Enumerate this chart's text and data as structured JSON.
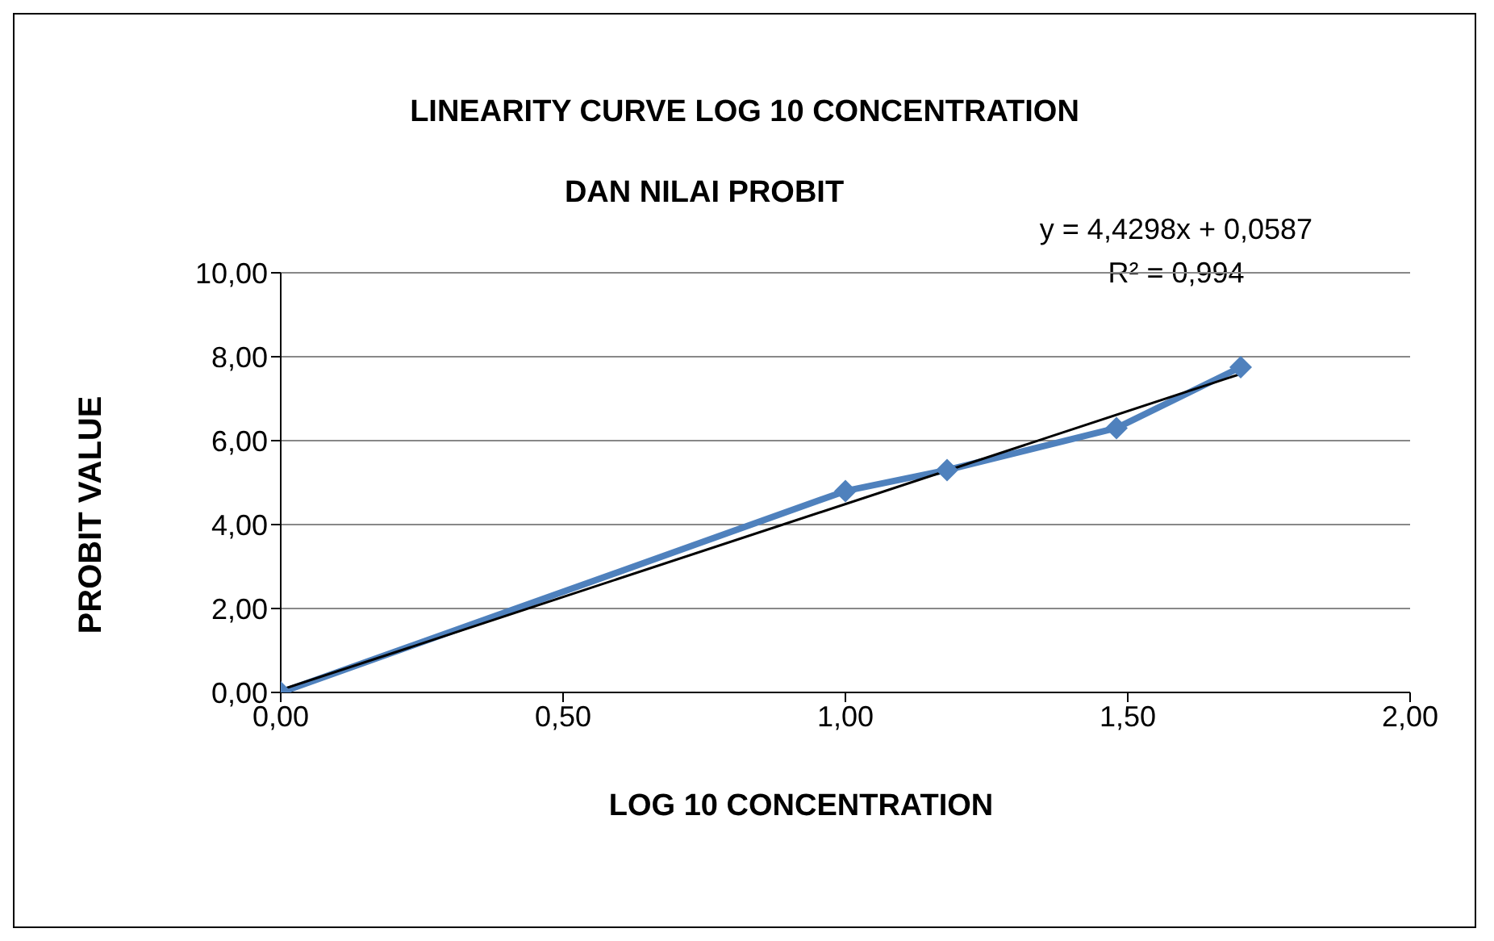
{
  "chart_data": {
    "type": "line",
    "title": "LINEARITY CURVE LOG 10 CONCENTRATION",
    "subtitle": "DAN NILAI PROBIT",
    "xlabel": "LOG 10 CONCENTRATION",
    "ylabel": "PROBIT VALUE",
    "annotations": [
      "y = 4,4298x + 0,0587",
      "R² = 0,994"
    ],
    "x": [
      0,
      1,
      1.18,
      1.48,
      1.7
    ],
    "series": [
      {
        "color": "#4f81bd",
        "values": [
          0,
          4.8,
          5.3,
          6.3,
          7.75
        ],
        "marker": "diamond"
      },
      {
        "type": "line",
        "color": "#000000",
        "x": [
          0,
          1.7
        ],
        "values": [
          0.06,
          7.59
        ],
        "marker": "none"
      }
    ],
    "xlim": [
      0,
      2
    ],
    "xticks": [
      {
        "value": 0,
        "label": "0,00"
      },
      {
        "value": 0.5,
        "label": "0,50"
      },
      {
        "value": 1,
        "label": "1,00"
      },
      {
        "value": 1.5,
        "label": "1,50"
      },
      {
        "value": 2,
        "label": "2,00"
      }
    ],
    "ylim": [
      0,
      10
    ],
    "yticks": [
      {
        "value": 0,
        "label": "0,00"
      },
      {
        "value": 2,
        "label": "2,00"
      },
      {
        "value": 4,
        "label": "4,00"
      },
      {
        "value": 6,
        "label": "6,00"
      },
      {
        "value": 8,
        "label": "8,00"
      },
      {
        "value": 10,
        "label": "10,00"
      }
    ],
    "grid": "y"
  }
}
